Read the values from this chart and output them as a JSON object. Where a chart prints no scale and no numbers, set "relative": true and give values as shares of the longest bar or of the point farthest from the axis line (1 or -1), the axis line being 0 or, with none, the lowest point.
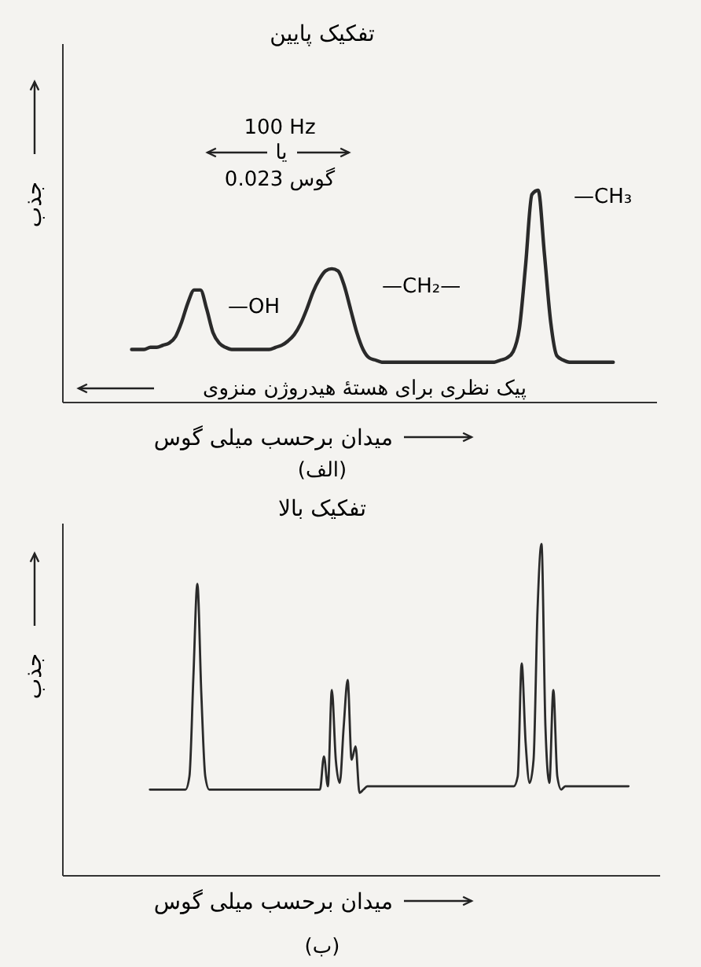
{
  "chart_data": [
    {
      "type": "line",
      "title": "تفکیک پایین",
      "xlabel": "میدان برحسب میلی گوس",
      "ylabel": "جذب",
      "relative": true,
      "categories": [
        null,
        null,
        null,
        null,
        null,
        null,
        null,
        null,
        null,
        null,
        null,
        null,
        null,
        null,
        null,
        null,
        null,
        null,
        null,
        null,
        null,
        null,
        null,
        null,
        null,
        null,
        null,
        null,
        null,
        null,
        null,
        null,
        null,
        null,
        null,
        null,
        null,
        null,
        null,
        null,
        null,
        null,
        null,
        null,
        null,
        null,
        null,
        null,
        null,
        null,
        null,
        null,
        null,
        null,
        null,
        null,
        null,
        null,
        null,
        null,
        null,
        null,
        null,
        null,
        null,
        null,
        null,
        null,
        null,
        null,
        null,
        null,
        null,
        null,
        null,
        null,
        null,
        null,
        null,
        null,
        null,
        null,
        null,
        null,
        null,
        null,
        null,
        null,
        null,
        null,
        null,
        null,
        null,
        null,
        null,
        null
      ],
      "series": [
        {
          "color": "#2a2a2a",
          "values": [
            null,
            null,
            null,
            null,
            null,
            null,
            null,
            null,
            null,
            null,
            null,
            0.25,
            0.25,
            0.25,
            0.26,
            0.26,
            0.27,
            0.28,
            0.31,
            0.38,
            0.47,
            0.53,
            0.53,
            0.44,
            0.33,
            0.28,
            0.26,
            0.25,
            0.25,
            0.25,
            0.25,
            0.25,
            0.25,
            0.25,
            0.26,
            0.27,
            0.29,
            0.32,
            0.37,
            0.44,
            0.52,
            0.58,
            0.62,
            0.63,
            0.62,
            0.55,
            0.44,
            0.33,
            0.25,
            0.21,
            0.2,
            0.19,
            0.19,
            0.19,
            0.19,
            0.19,
            0.19,
            0.19,
            0.19,
            0.19,
            0.19,
            0.19,
            0.19,
            0.19,
            0.19,
            0.19,
            0.19,
            0.19,
            0.19,
            0.19,
            0.2,
            0.21,
            0.24,
            0.35,
            0.65,
            0.98,
            1,
            0.7,
            0.38,
            0.22,
            0.2,
            0.19,
            0.19,
            0.19,
            0.19,
            0.19,
            0.19,
            0.19,
            0.19,
            null,
            null,
            null,
            null,
            null,
            null,
            null
          ]
        }
      ],
      "annotations": [
        "—OH",
        "—CH₂—",
        "—CH₃",
        "100 Hz",
        "یا",
        "0.023 گوس",
        "پیک نظری برای هستهٔ هیدروژن منزوی",
        "(الف)"
      ]
    },
    {
      "type": "line",
      "title": "تفکیک بالا",
      "xlabel": "میدان برحسب میلی گوس",
      "ylabel": "جذب",
      "relative": true,
      "categories": [
        null,
        null,
        null,
        null,
        null,
        null,
        null,
        null,
        null,
        null,
        null,
        null,
        null,
        null,
        null,
        null,
        null,
        null,
        null,
        null,
        null,
        null,
        null,
        null,
        null,
        null,
        null,
        null,
        null,
        null,
        null,
        null,
        null,
        null,
        null,
        null,
        null,
        null,
        null,
        null,
        null,
        null,
        null,
        null,
        null,
        null,
        null,
        null,
        null,
        null,
        null,
        null,
        null,
        null,
        null,
        null,
        null,
        null,
        null,
        null,
        null,
        null,
        null,
        null,
        null,
        null,
        null,
        null,
        null,
        null,
        null,
        null,
        null,
        null,
        null,
        null,
        null,
        null,
        null,
        null,
        null,
        null,
        null,
        null,
        null,
        null,
        null,
        null,
        null,
        null,
        null,
        null,
        null,
        null,
        null,
        null,
        null,
        null,
        null,
        null,
        null,
        null,
        null,
        null,
        null,
        null,
        null,
        null,
        null,
        null,
        null,
        null,
        null,
        null,
        null,
        null,
        null,
        null,
        null,
        null,
        null,
        null,
        null,
        null,
        null,
        null,
        null,
        null,
        null,
        null,
        null,
        null,
        null,
        null,
        null,
        null,
        null,
        null,
        null,
        null,
        null,
        null,
        null,
        null,
        null,
        null,
        null,
        null,
        null,
        null,
        null,
        null
      ],
      "series": [
        {
          "color": "#2a2a2a",
          "values": [
            null,
            null,
            null,
            null,
            null,
            null,
            null,
            null,
            null,
            null,
            null,
            null,
            null,
            null,
            null,
            null,
            null,
            null,
            null,
            null,
            null,
            null,
            0.26,
            0.26,
            0.26,
            0.26,
            0.26,
            0.26,
            0.26,
            0.26,
            0.26,
            0.26,
            0.3,
            0.6,
            0.88,
            0.55,
            0.3,
            0.26,
            0.26,
            0.26,
            0.26,
            0.26,
            0.26,
            0.26,
            0.26,
            0.26,
            0.26,
            0.26,
            0.26,
            0.26,
            0.26,
            0.26,
            0.26,
            0.26,
            0.26,
            0.26,
            0.26,
            0.26,
            0.26,
            0.26,
            0.26,
            0.26,
            0.26,
            0.26,
            0.26,
            0.26,
            0.36,
            0.27,
            0.56,
            0.35,
            0.28,
            0.45,
            0.59,
            0.35,
            0.39,
            0.25,
            0.26,
            0.27,
            0.27,
            0.27,
            0.27,
            0.27,
            0.27,
            0.27,
            0.27,
            0.27,
            0.27,
            0.27,
            0.27,
            0.27,
            0.27,
            0.27,
            0.27,
            0.27,
            0.27,
            0.27,
            0.27,
            0.27,
            0.27,
            0.27,
            0.27,
            0.27,
            0.27,
            0.27,
            0.27,
            0.27,
            0.27,
            0.27,
            0.27,
            0.27,
            0.27,
            0.27,
            0.27,
            0.27,
            0.27,
            0.3,
            0.64,
            0.4,
            0.28,
            0.35,
            0.8,
            1,
            0.45,
            0.28,
            0.56,
            0.3,
            0.26,
            0.27,
            0.27,
            0.27,
            0.27,
            0.27,
            0.27,
            0.27,
            0.27,
            0.27,
            0.27,
            0.27,
            0.27,
            0.27,
            0.27,
            0.27,
            0.27,
            0.27,
            null,
            null,
            null,
            null,
            null,
            null,
            null,
            null
          ]
        }
      ],
      "annotations": [
        "(ب)"
      ]
    }
  ]
}
